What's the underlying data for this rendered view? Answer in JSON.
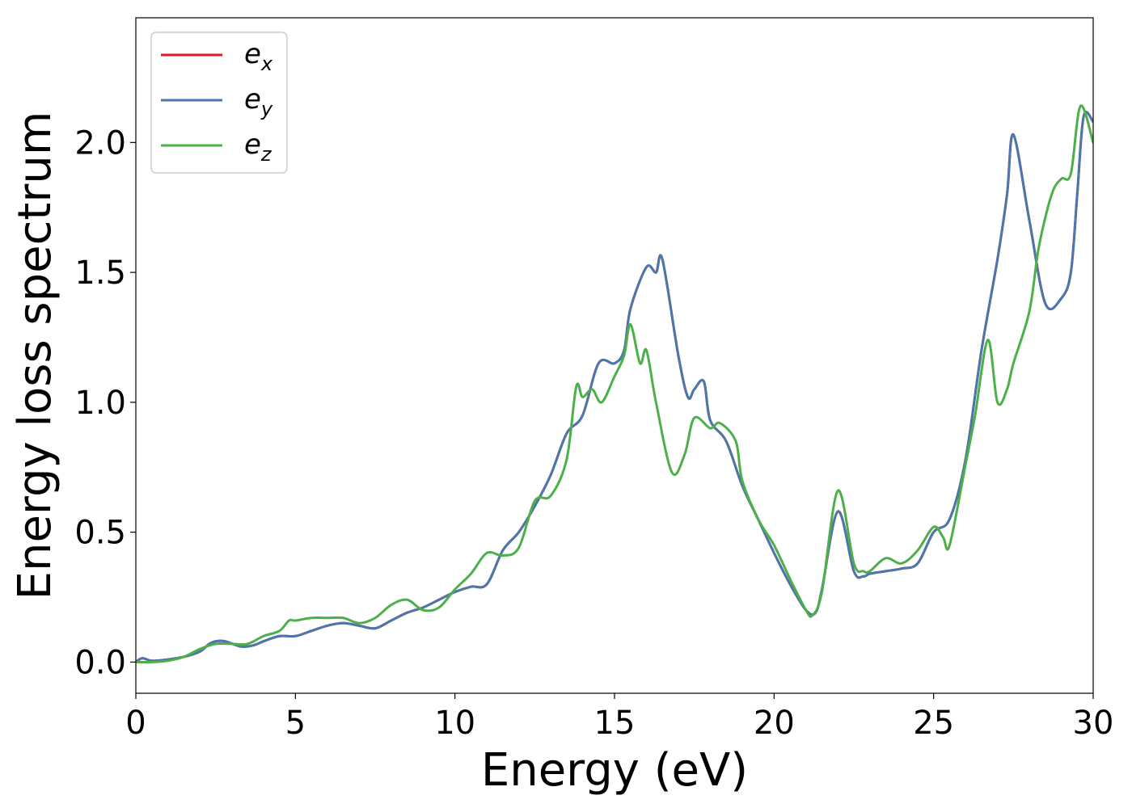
{
  "chart_data": {
    "type": "line",
    "title": "",
    "xlabel": "Energy (eV)",
    "ylabel": "Energy loss spectrum",
    "xlim": [
      0,
      30
    ],
    "ylim": [
      -0.12,
      2.48
    ],
    "xticks": [
      0,
      5,
      10,
      15,
      20,
      25,
      30
    ],
    "yticks": [
      0.0,
      0.5,
      1.0,
      1.5,
      2.0
    ],
    "xtick_labels": [
      "0",
      "5",
      "10",
      "15",
      "20",
      "25",
      "30"
    ],
    "ytick_labels": [
      "0.0",
      "0.5",
      "1.0",
      "1.5",
      "2.0"
    ],
    "grid": false,
    "legend_position": "top-left",
    "series": [
      {
        "name": "e_x",
        "name_base": "e",
        "name_sub": "x",
        "color": "#e41a1c",
        "hidden_under": "e_y",
        "x": [
          0,
          0.2,
          0.5,
          1,
          1.5,
          2,
          2.3,
          2.5,
          2.8,
          3.3,
          3.7,
          4,
          4.5,
          5,
          5.5,
          6,
          6.5,
          7,
          7.5,
          8,
          8.5,
          9,
          9.5,
          10,
          10.5,
          11,
          11.5,
          12,
          12.5,
          13,
          13.5,
          14,
          14.5,
          15,
          15.3,
          15.5,
          16,
          16.3,
          16.5,
          17,
          17.3,
          17.5,
          17.8,
          18,
          18.5,
          19,
          19.5,
          20,
          20.5,
          21,
          21.3,
          21.5,
          22,
          22.5,
          22.8,
          23,
          23.5,
          24,
          24.5,
          25,
          25.5,
          26,
          26.5,
          27,
          27.3,
          27.5,
          28,
          28.5,
          29,
          29.3,
          29.5,
          29.7,
          30
        ],
        "y": [
          0.0,
          0.015,
          0.005,
          0.01,
          0.02,
          0.04,
          0.07,
          0.08,
          0.08,
          0.06,
          0.065,
          0.08,
          0.1,
          0.1,
          0.12,
          0.14,
          0.15,
          0.14,
          0.13,
          0.16,
          0.19,
          0.21,
          0.24,
          0.27,
          0.29,
          0.3,
          0.43,
          0.5,
          0.6,
          0.72,
          0.88,
          0.95,
          1.15,
          1.15,
          1.2,
          1.36,
          1.52,
          1.5,
          1.55,
          1.18,
          1.02,
          1.05,
          1.08,
          0.93,
          0.85,
          0.68,
          0.55,
          0.42,
          0.3,
          0.2,
          0.19,
          0.28,
          0.58,
          0.35,
          0.33,
          0.34,
          0.35,
          0.36,
          0.38,
          0.5,
          0.55,
          0.78,
          1.2,
          1.55,
          1.8,
          2.03,
          1.7,
          1.38,
          1.4,
          1.5,
          1.8,
          2.1,
          2.08
        ]
      },
      {
        "name": "e_y",
        "name_base": "e",
        "name_sub": "y",
        "color": "#4a77ac",
        "x": [
          0,
          0.2,
          0.5,
          1,
          1.5,
          2,
          2.3,
          2.5,
          2.8,
          3.3,
          3.7,
          4,
          4.5,
          5,
          5.5,
          6,
          6.5,
          7,
          7.5,
          8,
          8.5,
          9,
          9.5,
          10,
          10.5,
          11,
          11.5,
          12,
          12.5,
          13,
          13.5,
          14,
          14.5,
          15,
          15.3,
          15.5,
          16,
          16.3,
          16.5,
          17,
          17.3,
          17.5,
          17.8,
          18,
          18.5,
          19,
          19.5,
          20,
          20.5,
          21,
          21.3,
          21.5,
          22,
          22.5,
          22.8,
          23,
          23.5,
          24,
          24.5,
          25,
          25.5,
          26,
          26.5,
          27,
          27.3,
          27.5,
          28,
          28.5,
          29,
          29.3,
          29.5,
          29.7,
          30
        ],
        "y": [
          0.0,
          0.015,
          0.005,
          0.01,
          0.02,
          0.04,
          0.07,
          0.08,
          0.08,
          0.06,
          0.065,
          0.08,
          0.1,
          0.1,
          0.12,
          0.14,
          0.15,
          0.14,
          0.13,
          0.16,
          0.19,
          0.21,
          0.24,
          0.27,
          0.29,
          0.3,
          0.43,
          0.5,
          0.6,
          0.72,
          0.88,
          0.95,
          1.15,
          1.15,
          1.2,
          1.36,
          1.52,
          1.5,
          1.55,
          1.18,
          1.02,
          1.05,
          1.08,
          0.93,
          0.85,
          0.68,
          0.55,
          0.42,
          0.3,
          0.2,
          0.19,
          0.28,
          0.58,
          0.35,
          0.33,
          0.34,
          0.35,
          0.36,
          0.38,
          0.5,
          0.55,
          0.78,
          1.2,
          1.55,
          1.8,
          2.03,
          1.7,
          1.38,
          1.4,
          1.5,
          1.8,
          2.1,
          2.08
        ]
      },
      {
        "name": "e_z",
        "name_base": "e",
        "name_sub": "z",
        "color": "#4daf4a",
        "x": [
          0,
          0.5,
          1,
          1.5,
          2,
          2.5,
          3,
          3.5,
          4,
          4.5,
          4.8,
          5,
          5.5,
          6,
          6.5,
          7,
          7.5,
          8,
          8.5,
          9,
          9.5,
          10,
          10.5,
          11,
          11.5,
          12,
          12.5,
          13,
          13.5,
          13.8,
          14,
          14.3,
          14.6,
          15,
          15.3,
          15.5,
          15.8,
          16,
          16.3,
          16.8,
          17.2,
          17.5,
          18,
          18.3,
          18.8,
          19,
          19.5,
          20,
          20.5,
          21,
          21.2,
          21.5,
          22,
          22.5,
          22.8,
          23,
          23.5,
          24,
          24.5,
          25,
          25.3,
          25.5,
          26,
          26.3,
          26.7,
          27,
          27.3,
          27.5,
          28,
          28.3,
          28.7,
          29,
          29.3,
          29.6,
          30
        ],
        "y": [
          0.0,
          0.0,
          0.005,
          0.02,
          0.05,
          0.07,
          0.07,
          0.07,
          0.1,
          0.12,
          0.16,
          0.16,
          0.17,
          0.17,
          0.17,
          0.15,
          0.17,
          0.22,
          0.24,
          0.2,
          0.21,
          0.28,
          0.34,
          0.42,
          0.41,
          0.44,
          0.62,
          0.64,
          0.78,
          1.06,
          1.02,
          1.05,
          1.0,
          1.1,
          1.18,
          1.3,
          1.15,
          1.2,
          1.0,
          0.73,
          0.8,
          0.94,
          0.9,
          0.92,
          0.85,
          0.7,
          0.55,
          0.45,
          0.32,
          0.2,
          0.18,
          0.27,
          0.66,
          0.38,
          0.35,
          0.35,
          0.4,
          0.38,
          0.43,
          0.52,
          0.48,
          0.45,
          0.76,
          0.95,
          1.24,
          1.0,
          1.05,
          1.15,
          1.35,
          1.6,
          1.8,
          1.86,
          1.88,
          2.14,
          2.0
        ]
      }
    ]
  }
}
